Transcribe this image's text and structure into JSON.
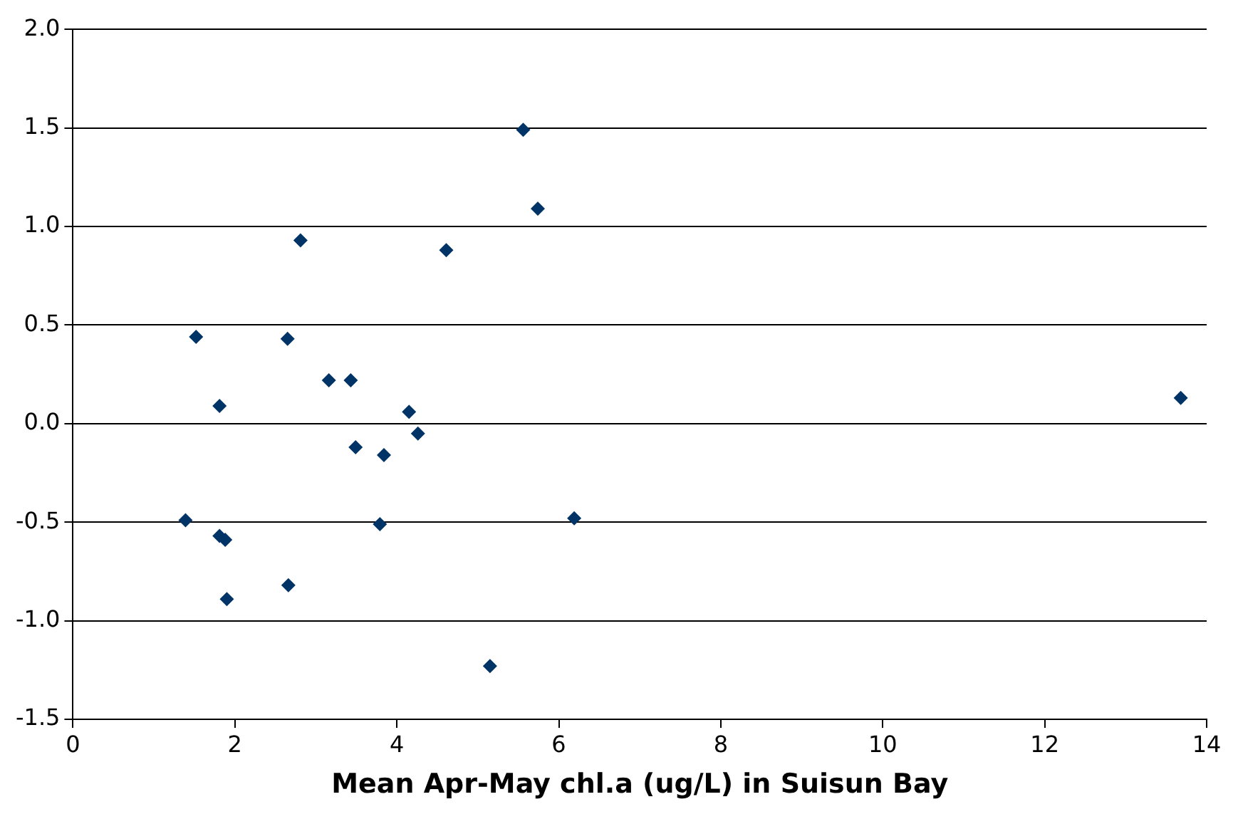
{
  "chart_data": {
    "type": "scatter",
    "xlabel": "Mean Apr-May chl.a (ug/L) in Suisun Bay",
    "x": [
      1.39,
      1.52,
      1.81,
      1.81,
      1.88,
      1.9,
      2.65,
      2.66,
      2.81,
      3.16,
      3.43,
      3.49,
      3.79,
      3.84,
      4.15,
      4.26,
      4.61,
      5.15,
      5.56,
      5.74,
      6.19,
      13.68
    ],
    "series": [
      {
        "color": "#003366",
        "values": [
          -0.49,
          0.44,
          0.09,
          -0.57,
          -0.59,
          -0.89,
          0.43,
          -0.82,
          0.93,
          0.22,
          0.22,
          -0.12,
          -0.51,
          -0.16,
          0.06,
          -0.05,
          0.88,
          -1.23,
          1.49,
          1.09,
          -0.48,
          0.13
        ]
      }
    ],
    "xlim": [
      0,
      14
    ],
    "xticks": [
      0,
      2,
      4,
      6,
      8,
      10,
      12,
      14
    ],
    "ylim": [
      -1.5,
      2.0
    ],
    "yticks": [
      {
        "value": -1.5,
        "label": "-1.5"
      },
      {
        "value": -1,
        "label": "-1.0"
      },
      {
        "value": -0.5,
        "label": "-0.5"
      },
      {
        "value": 0,
        "label": "0.0"
      },
      {
        "value": 0.5,
        "label": "0.5"
      },
      {
        "value": 1,
        "label": "1.0"
      },
      {
        "value": 1.5,
        "label": "1.5"
      },
      {
        "value": 2,
        "label": "2.0"
      }
    ],
    "grid": "y",
    "legend": false,
    "marker": "diamond"
  }
}
